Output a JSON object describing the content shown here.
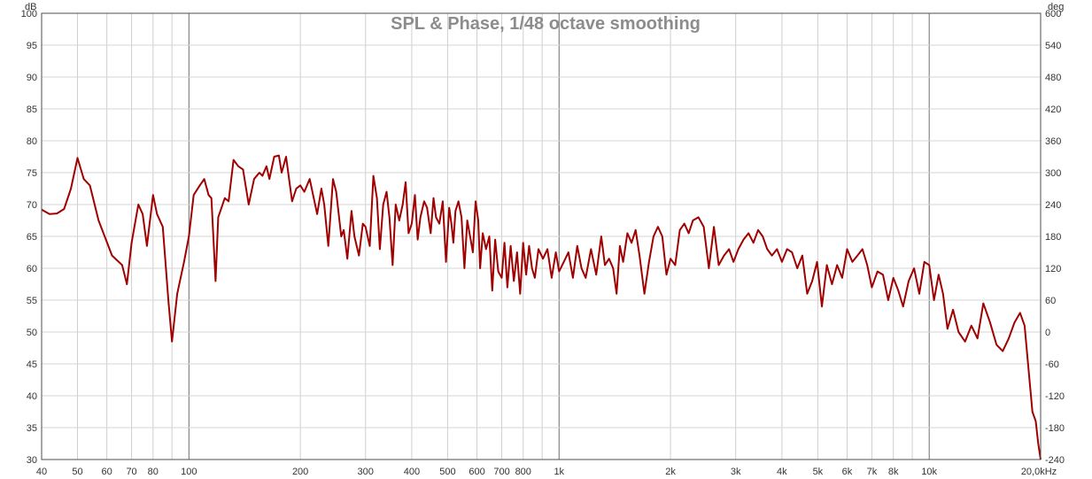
{
  "chart_data": {
    "type": "line",
    "title": "SPL & Phase, 1/48 octave smoothing",
    "y_unit_left": "dB",
    "y_unit_right": "deg",
    "x_scale": "log",
    "xlim": [
      40,
      20000
    ],
    "ylim_left": [
      30,
      100
    ],
    "ylim_right": [
      -240,
      600
    ],
    "grid": true,
    "line_color": "#a00000",
    "x_tick_labels": [
      {
        "value": 40,
        "label": "40"
      },
      {
        "value": 50,
        "label": "50"
      },
      {
        "value": 60,
        "label": "60"
      },
      {
        "value": 70,
        "label": "70"
      },
      {
        "value": 80,
        "label": "80"
      },
      {
        "value": 100,
        "label": "100"
      },
      {
        "value": 200,
        "label": "200"
      },
      {
        "value": 300,
        "label": "300"
      },
      {
        "value": 400,
        "label": "400"
      },
      {
        "value": 500,
        "label": "500"
      },
      {
        "value": 600,
        "label": "600"
      },
      {
        "value": 700,
        "label": "700"
      },
      {
        "value": 800,
        "label": "800"
      },
      {
        "value": 1000,
        "label": "1k"
      },
      {
        "value": 2000,
        "label": "2k"
      },
      {
        "value": 3000,
        "label": "3k"
      },
      {
        "value": 4000,
        "label": "4k"
      },
      {
        "value": 5000,
        "label": "5k"
      },
      {
        "value": 6000,
        "label": "6k"
      },
      {
        "value": 7000,
        "label": "7k"
      },
      {
        "value": 8000,
        "label": "8k"
      },
      {
        "value": 10000,
        "label": "10k"
      },
      {
        "value": 20000,
        "label": "20,0kHz"
      }
    ],
    "y_left_ticks": [
      100,
      95,
      90,
      85,
      80,
      75,
      70,
      65,
      60,
      55,
      50,
      45,
      40,
      35,
      30
    ],
    "y_right_ticks": [
      600,
      540,
      480,
      420,
      360,
      300,
      240,
      180,
      120,
      60,
      0,
      -60,
      -120,
      -180,
      -240
    ],
    "series": [
      {
        "values_unit": "dB",
        "points": [
          [
            40,
            69.2
          ],
          [
            42,
            68.5
          ],
          [
            44,
            68.6
          ],
          [
            46,
            69.3
          ],
          [
            48,
            72.5
          ],
          [
            50,
            77.3
          ],
          [
            52,
            74.0
          ],
          [
            54,
            73.0
          ],
          [
            57,
            67.5
          ],
          [
            62,
            62.0
          ],
          [
            66,
            60.5
          ],
          [
            68,
            57.5
          ],
          [
            70,
            64.0
          ],
          [
            73,
            70.0
          ],
          [
            75,
            68.5
          ],
          [
            77,
            63.5
          ],
          [
            80,
            71.5
          ],
          [
            82,
            68.5
          ],
          [
            85,
            66.5
          ],
          [
            88,
            55.0
          ],
          [
            90,
            48.5
          ],
          [
            93,
            56.0
          ],
          [
            97,
            61.0
          ],
          [
            100,
            65.0
          ],
          [
            103,
            71.5
          ],
          [
            107,
            73.0
          ],
          [
            110,
            74.0
          ],
          [
            113,
            71.5
          ],
          [
            115,
            71.0
          ],
          [
            118,
            58.0
          ],
          [
            120,
            68.0
          ],
          [
            125,
            71.0
          ],
          [
            128,
            70.5
          ],
          [
            132,
            77.0
          ],
          [
            136,
            76.0
          ],
          [
            140,
            75.5
          ],
          [
            145,
            70.0
          ],
          [
            150,
            74.0
          ],
          [
            155,
            75.0
          ],
          [
            158,
            74.5
          ],
          [
            162,
            76.0
          ],
          [
            165,
            74.0
          ],
          [
            170,
            77.5
          ],
          [
            175,
            77.7
          ],
          [
            178,
            75.0
          ],
          [
            183,
            77.5
          ],
          [
            190,
            70.5
          ],
          [
            195,
            72.5
          ],
          [
            200,
            73.0
          ],
          [
            205,
            72.0
          ],
          [
            212,
            74.0
          ],
          [
            222,
            68.5
          ],
          [
            228,
            72.5
          ],
          [
            232,
            70.0
          ],
          [
            238,
            63.5
          ],
          [
            245,
            74.0
          ],
          [
            250,
            72.0
          ],
          [
            258,
            65.0
          ],
          [
            262,
            66.0
          ],
          [
            268,
            61.5
          ],
          [
            275,
            69.0
          ],
          [
            280,
            65.0
          ],
          [
            288,
            62.0
          ],
          [
            295,
            67.0
          ],
          [
            300,
            66.5
          ],
          [
            308,
            63.5
          ],
          [
            315,
            74.5
          ],
          [
            322,
            71.0
          ],
          [
            328,
            63.0
          ],
          [
            335,
            70.0
          ],
          [
            342,
            72.0
          ],
          [
            348,
            68.0
          ],
          [
            355,
            60.5
          ],
          [
            362,
            70.0
          ],
          [
            370,
            67.5
          ],
          [
            378,
            70.0
          ],
          [
            385,
            73.5
          ],
          [
            392,
            65.5
          ],
          [
            400,
            67.0
          ],
          [
            408,
            71.5
          ],
          [
            415,
            64.5
          ],
          [
            422,
            68.0
          ],
          [
            432,
            70.5
          ],
          [
            440,
            69.5
          ],
          [
            450,
            65.5
          ],
          [
            458,
            71.0
          ],
          [
            465,
            68.0
          ],
          [
            475,
            67.0
          ],
          [
            485,
            70.5
          ],
          [
            495,
            61.0
          ],
          [
            505,
            69.5
          ],
          [
            512,
            67.0
          ],
          [
            518,
            64.0
          ],
          [
            525,
            69.0
          ],
          [
            535,
            70.5
          ],
          [
            545,
            68.0
          ],
          [
            555,
            60.0
          ],
          [
            565,
            67.5
          ],
          [
            575,
            65.0
          ],
          [
            585,
            62.5
          ],
          [
            595,
            70.5
          ],
          [
            605,
            67.5
          ],
          [
            612,
            60.0
          ],
          [
            622,
            65.5
          ],
          [
            635,
            63.0
          ],
          [
            648,
            65.0
          ],
          [
            660,
            56.5
          ],
          [
            672,
            64.5
          ],
          [
            685,
            59.5
          ],
          [
            700,
            58.5
          ],
          [
            712,
            64.0
          ],
          [
            725,
            57.0
          ],
          [
            740,
            63.5
          ],
          [
            755,
            58.0
          ],
          [
            770,
            62.5
          ],
          [
            785,
            56.0
          ],
          [
            800,
            64.0
          ],
          [
            815,
            59.0
          ],
          [
            830,
            63.5
          ],
          [
            845,
            60.0
          ],
          [
            860,
            58.5
          ],
          [
            880,
            63.0
          ],
          [
            905,
            61.5
          ],
          [
            930,
            63.0
          ],
          [
            955,
            58.5
          ],
          [
            980,
            62.5
          ],
          [
            1000,
            59.5
          ],
          [
            1030,
            61.0
          ],
          [
            1060,
            62.5
          ],
          [
            1090,
            58.5
          ],
          [
            1120,
            63.5
          ],
          [
            1150,
            60.0
          ],
          [
            1180,
            58.5
          ],
          [
            1220,
            63.0
          ],
          [
            1260,
            59.0
          ],
          [
            1300,
            65.0
          ],
          [
            1330,
            60.5
          ],
          [
            1365,
            61.5
          ],
          [
            1400,
            60.0
          ],
          [
            1430,
            56.0
          ],
          [
            1460,
            63.5
          ],
          [
            1490,
            61.0
          ],
          [
            1530,
            65.5
          ],
          [
            1570,
            64.0
          ],
          [
            1610,
            66.0
          ],
          [
            1650,
            62.0
          ],
          [
            1700,
            56.0
          ],
          [
            1750,
            61.0
          ],
          [
            1800,
            65.0
          ],
          [
            1850,
            66.5
          ],
          [
            1900,
            65.0
          ],
          [
            1950,
            59.0
          ],
          [
            2000,
            61.5
          ],
          [
            2060,
            60.5
          ],
          [
            2120,
            66.0
          ],
          [
            2180,
            67.0
          ],
          [
            2240,
            65.5
          ],
          [
            2300,
            67.5
          ],
          [
            2380,
            68.0
          ],
          [
            2460,
            66.5
          ],
          [
            2540,
            60.0
          ],
          [
            2620,
            66.5
          ],
          [
            2700,
            60.5
          ],
          [
            2790,
            62.0
          ],
          [
            2880,
            63.0
          ],
          [
            2960,
            61.0
          ],
          [
            3050,
            63.0
          ],
          [
            3150,
            64.5
          ],
          [
            3250,
            65.5
          ],
          [
            3350,
            64.0
          ],
          [
            3450,
            66.0
          ],
          [
            3550,
            65.0
          ],
          [
            3650,
            63.0
          ],
          [
            3760,
            62.0
          ],
          [
            3880,
            63.0
          ],
          [
            4000,
            61.0
          ],
          [
            4130,
            63.0
          ],
          [
            4260,
            62.5
          ],
          [
            4400,
            60.0
          ],
          [
            4540,
            62.0
          ],
          [
            4680,
            56.0
          ],
          [
            4830,
            58.0
          ],
          [
            4980,
            61.0
          ],
          [
            5130,
            54.0
          ],
          [
            5290,
            60.5
          ],
          [
            5460,
            57.5
          ],
          [
            5640,
            60.5
          ],
          [
            5820,
            58.5
          ],
          [
            6000,
            63.0
          ],
          [
            6200,
            61.0
          ],
          [
            6400,
            62.0
          ],
          [
            6600,
            63.0
          ],
          [
            6800,
            60.5
          ],
          [
            7000,
            57.0
          ],
          [
            7250,
            59.5
          ],
          [
            7500,
            59.0
          ],
          [
            7750,
            55.0
          ],
          [
            8000,
            58.5
          ],
          [
            8250,
            56.5
          ],
          [
            8500,
            54.0
          ],
          [
            8800,
            58.0
          ],
          [
            9100,
            60.0
          ],
          [
            9400,
            56.0
          ],
          [
            9700,
            61.0
          ],
          [
            10000,
            60.5
          ],
          [
            10300,
            55.0
          ],
          [
            10600,
            59.0
          ],
          [
            10900,
            56.0
          ],
          [
            11200,
            50.5
          ],
          [
            11600,
            53.5
          ],
          [
            12000,
            50.0
          ],
          [
            12500,
            48.5
          ],
          [
            13000,
            51.0
          ],
          [
            13500,
            49.0
          ],
          [
            14000,
            54.5
          ],
          [
            14600,
            51.5
          ],
          [
            15200,
            48.0
          ],
          [
            15800,
            47.0
          ],
          [
            16400,
            49.0
          ],
          [
            17000,
            51.5
          ],
          [
            17600,
            53.0
          ],
          [
            18100,
            51.0
          ],
          [
            18500,
            45.0
          ],
          [
            19000,
            37.5
          ],
          [
            19400,
            36.0
          ],
          [
            19700,
            32.5
          ],
          [
            20000,
            30.0
          ]
        ]
      }
    ]
  }
}
